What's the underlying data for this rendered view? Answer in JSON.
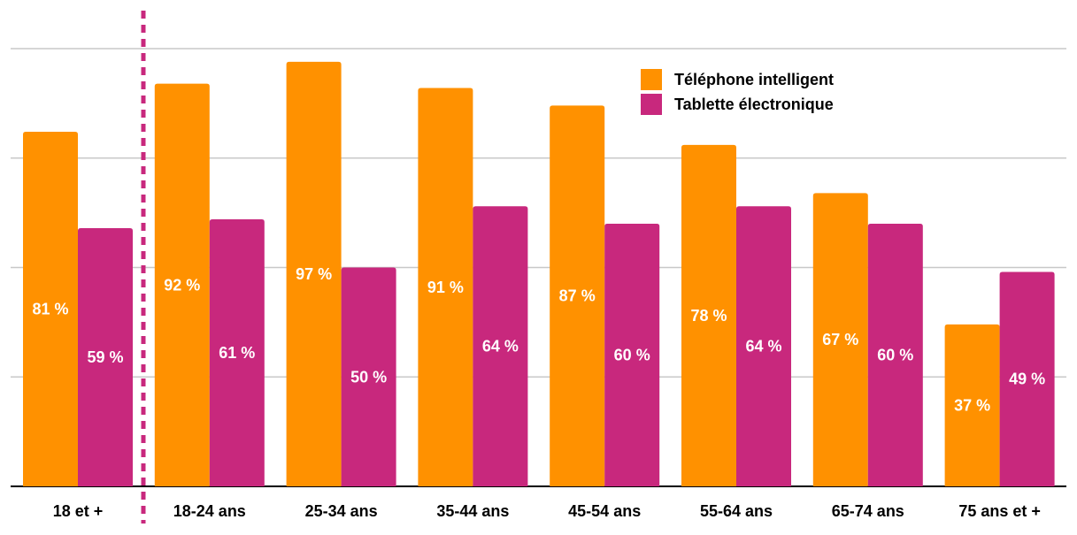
{
  "chart_data": {
    "type": "bar",
    "categories": [
      "18 et +",
      "18-24 ans",
      "25-34 ans",
      "35-44 ans",
      "45-54 ans",
      "55-64 ans",
      "65-74 ans",
      "75 ans et +"
    ],
    "series": [
      {
        "name": "Téléphone intelligent",
        "color": "#FF9100",
        "values": [
          81,
          92,
          97,
          91,
          87,
          78,
          67,
          37
        ]
      },
      {
        "name": "Tablette électronique",
        "color": "#C8287D",
        "values": [
          59,
          61,
          50,
          64,
          60,
          64,
          60,
          49
        ]
      }
    ],
    "value_suffix": " %",
    "ylim": [
      0,
      100
    ],
    "grid": true,
    "legend_position": "top-right",
    "separator_after_category": 0,
    "separator_color": "#C8287D",
    "xlabel": "",
    "ylabel": "",
    "title": ""
  }
}
